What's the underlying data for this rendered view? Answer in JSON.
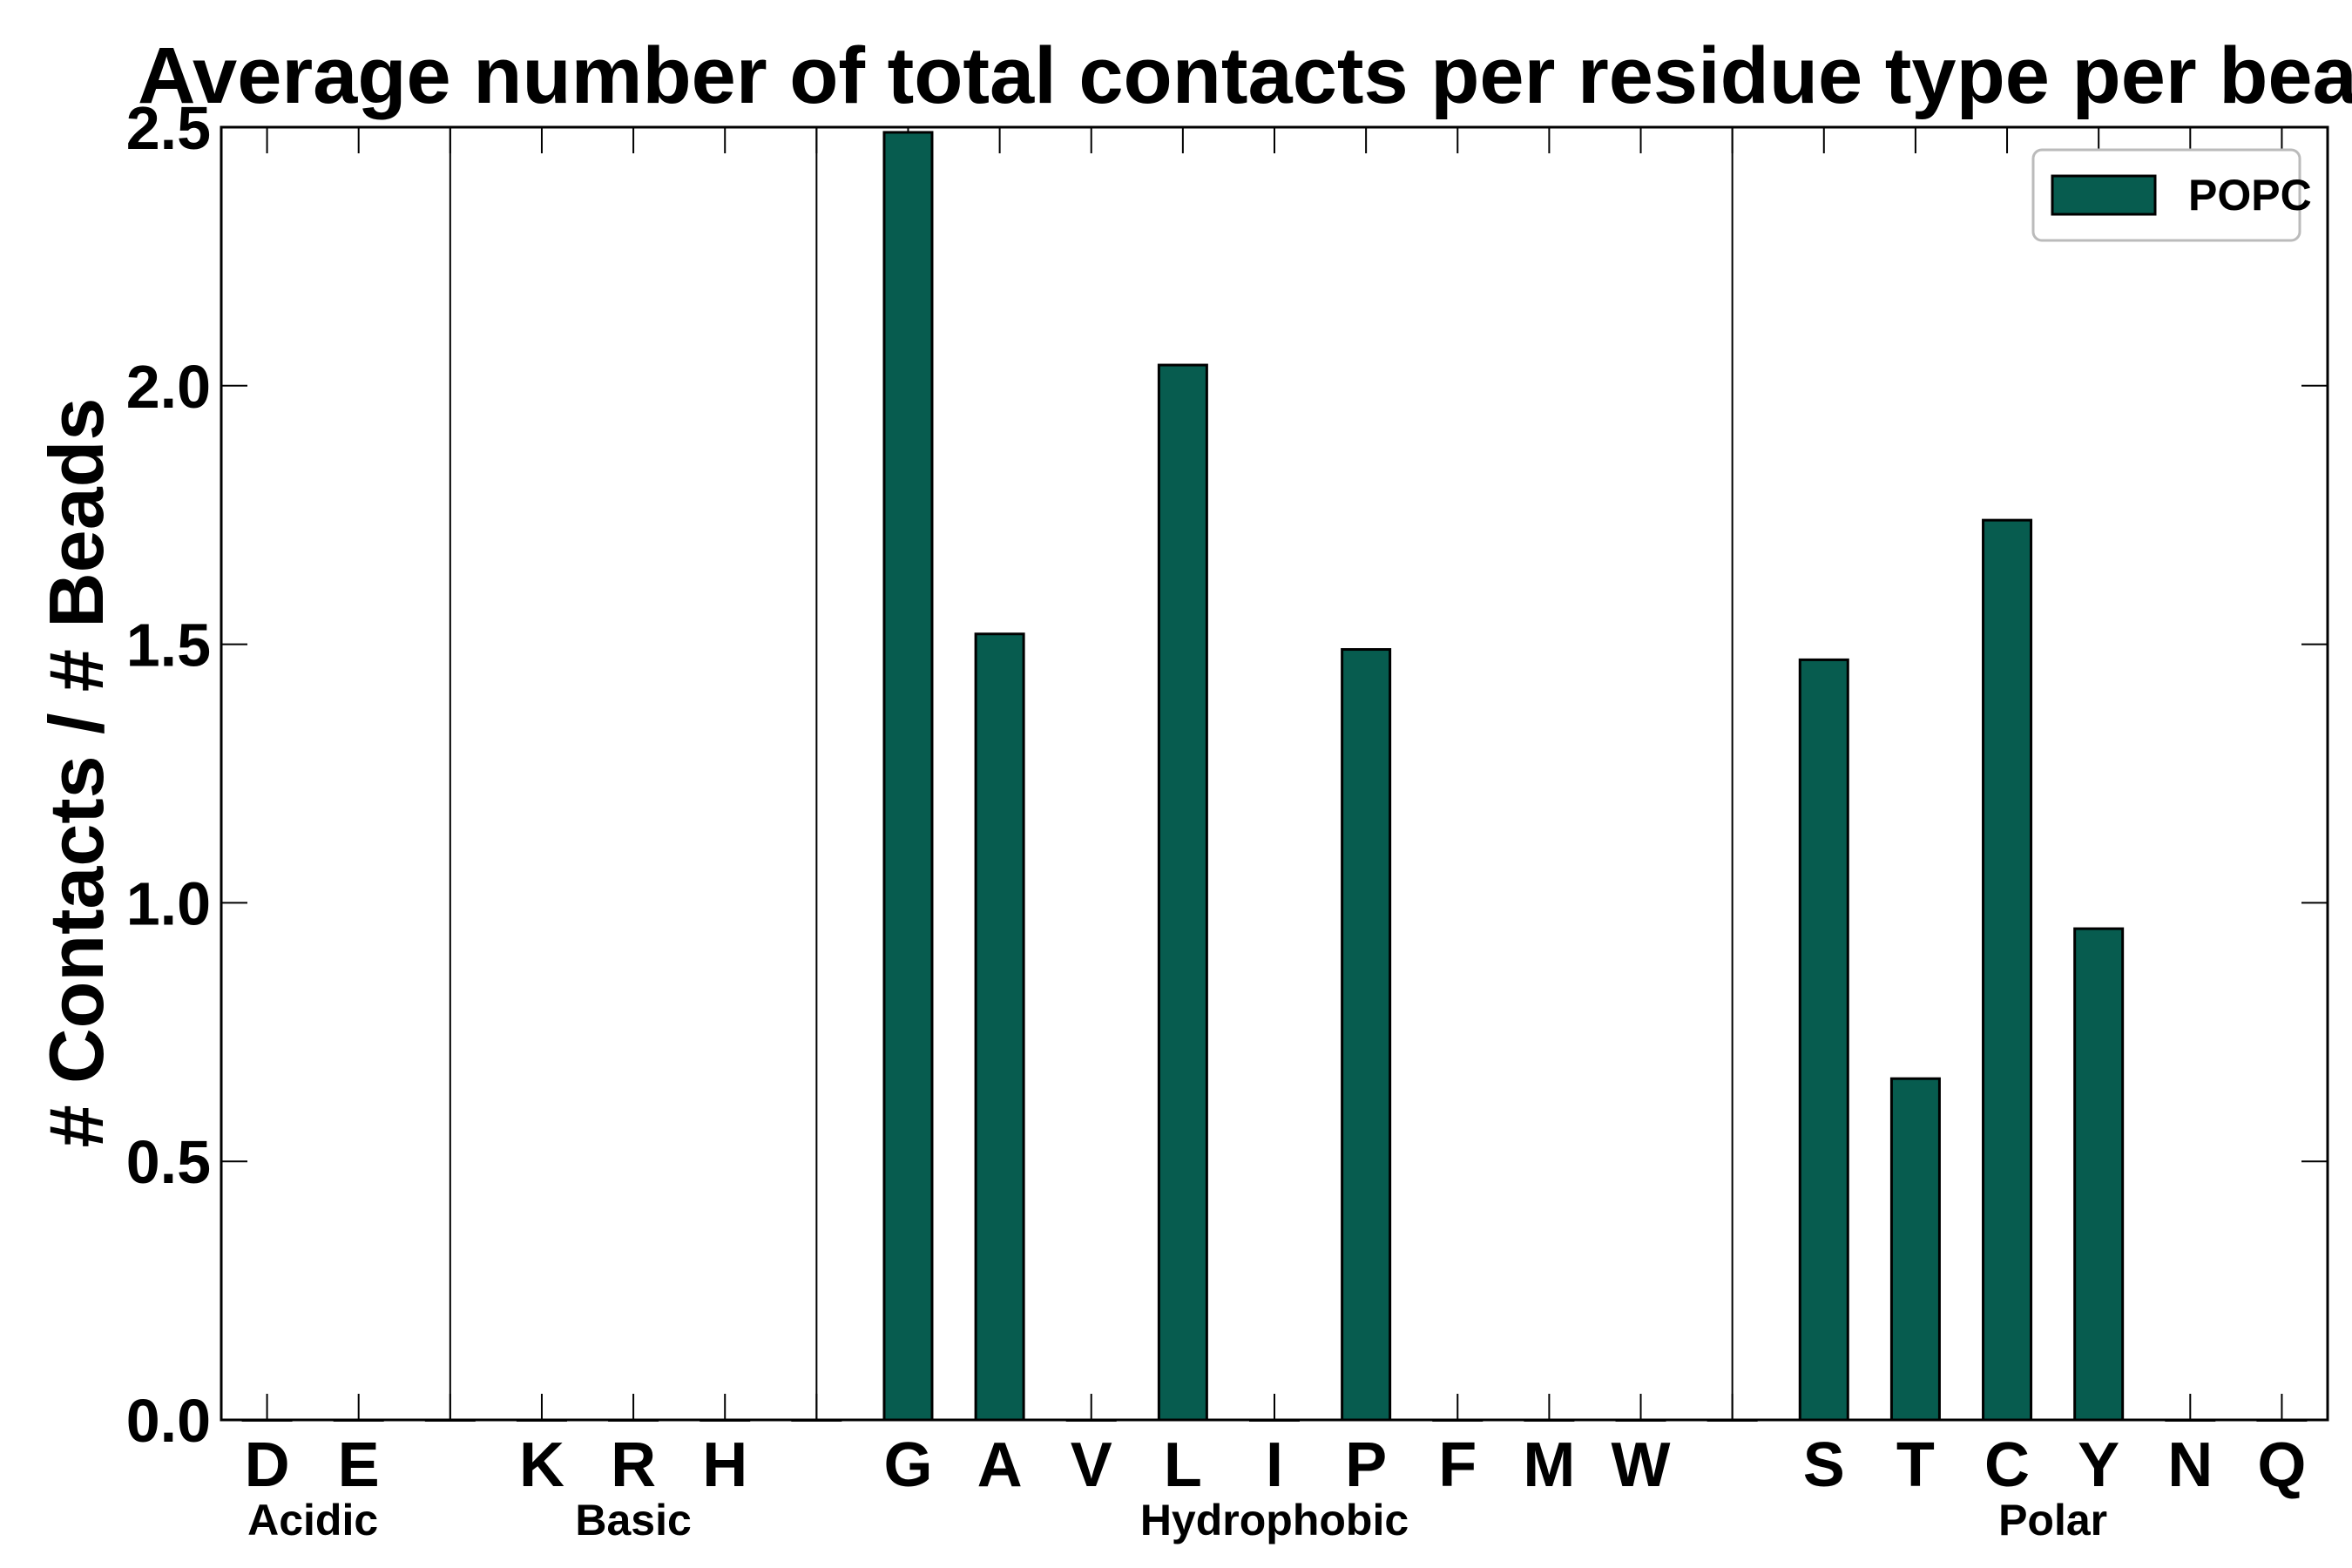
{
  "chart_data": {
    "type": "bar",
    "title": "Average number of total contacts per residue type per bead",
    "ylabel": "# Contacts / # Beads",
    "xlabel": "",
    "ylim": [
      0,
      2.5
    ],
    "yticks": [
      "0.0",
      "0.5",
      "1.0",
      "1.5",
      "2.0",
      "2.5"
    ],
    "grid": false,
    "legend_position": "top-right",
    "bar_color": "#075c4f",
    "categories": [
      "D",
      "E",
      "",
      "K",
      "R",
      "H",
      "",
      "G",
      "A",
      "V",
      "L",
      "I",
      "P",
      "F",
      "M",
      "W",
      "",
      "S",
      "T",
      "C",
      "Y",
      "N",
      "Q"
    ],
    "series": [
      {
        "name": "POPC",
        "values": [
          0,
          0,
          0,
          0,
          0,
          0,
          0,
          2.49,
          1.52,
          0,
          2.04,
          0,
          1.49,
          0,
          0,
          0,
          0,
          1.47,
          0.66,
          1.74,
          0.95,
          0,
          0
        ]
      }
    ],
    "groups": [
      {
        "label": "Acidic",
        "members": [
          "D",
          "E"
        ]
      },
      {
        "label": "Basic",
        "members": [
          "K",
          "R",
          "H"
        ]
      },
      {
        "label": "Hydrophobic",
        "members": [
          "G",
          "A",
          "V",
          "L",
          "I",
          "P",
          "F",
          "M",
          "W"
        ]
      },
      {
        "label": "Polar",
        "members": [
          "S",
          "T",
          "C",
          "Y",
          "N",
          "Q"
        ]
      }
    ]
  }
}
